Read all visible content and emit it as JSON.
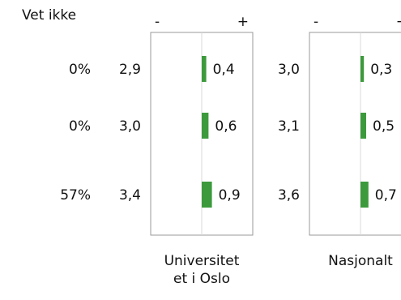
{
  "header": {
    "vet_ikke_label": "Vet ikke"
  },
  "colors": {
    "bar": "#3c9a3c",
    "frame": "#999999",
    "midline": "#d9d9d9",
    "text": "#111111"
  },
  "chart_data": {
    "type": "bar",
    "orientation": "diverging-horizontal",
    "rows": 3,
    "vet_ikke": [
      "0%",
      "0%",
      "57%"
    ],
    "scale_labels": {
      "negative": "-",
      "positive": "+"
    },
    "panels": [
      {
        "name": "Universitetet i Oslo",
        "name_lines": [
          "Universitet",
          "et i Oslo"
        ],
        "means": [
          "2,9",
          "3,0",
          "3,4"
        ],
        "value_labels": [
          "0,4",
          "0,6",
          "0,9"
        ],
        "values": [
          0.4,
          0.6,
          0.9
        ]
      },
      {
        "name": "Nasjonalt",
        "name_lines": [
          "Nasjonalt"
        ],
        "means": [
          "3,0",
          "3,1",
          "3,6"
        ],
        "value_labels": [
          "0,3",
          "0,5",
          "0,7"
        ],
        "values": [
          0.3,
          0.5,
          0.7
        ]
      }
    ]
  }
}
